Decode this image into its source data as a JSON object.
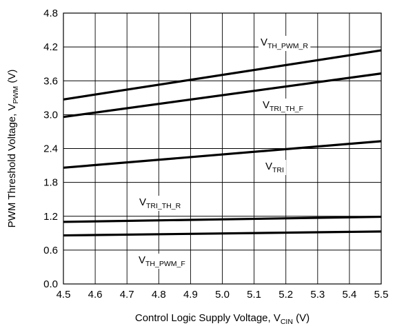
{
  "chart_data": {
    "type": "line",
    "xlabel": {
      "main": "Control Logic Supply Voltage, V",
      "sub": "CIN",
      "unit": " (V)"
    },
    "ylabel": {
      "main": "PWM Threshold Voltage, V",
      "sub": "PWM",
      "unit": " (V)"
    },
    "xlim": [
      4.5,
      5.5
    ],
    "ylim": [
      0.0,
      4.8
    ],
    "xticks": [
      "4.5",
      "4.6",
      "4.7",
      "4.8",
      "4.9",
      "5.0",
      "5.1",
      "5.2",
      "5.3",
      "5.4",
      "5.5"
    ],
    "yticks": [
      "0.0",
      "0.6",
      "1.2",
      "1.8",
      "2.4",
      "3.0",
      "3.6",
      "4.2",
      "4.8"
    ],
    "grid": true,
    "series": [
      {
        "name": "V_TH_PWM_R",
        "label_main": "V",
        "label_sub": "TH_PWM_R",
        "x": [
          4.5,
          5.5
        ],
        "y": [
          3.27,
          4.14
        ]
      },
      {
        "name": "V_TRI_TH_F",
        "label_main": "V",
        "label_sub": "TRI_TH_F",
        "x": [
          4.5,
          5.5
        ],
        "y": [
          2.96,
          3.73
        ]
      },
      {
        "name": "V_TRI",
        "label_main": "V",
        "label_sub": "TRI",
        "x": [
          4.5,
          5.5
        ],
        "y": [
          2.06,
          2.53
        ]
      },
      {
        "name": "V_TRI_TH_R",
        "label_main": "V",
        "label_sub": "TRI_TH_R",
        "x": [
          4.5,
          5.5
        ],
        "y": [
          1.1,
          1.19
        ]
      },
      {
        "name": "V_TH_PWM_F",
        "label_main": "V",
        "label_sub": "TH_PWM_F",
        "x": [
          4.5,
          5.5
        ],
        "y": [
          0.86,
          0.93
        ]
      }
    ],
    "line_color": "#000000",
    "grid_color": "#000000"
  }
}
